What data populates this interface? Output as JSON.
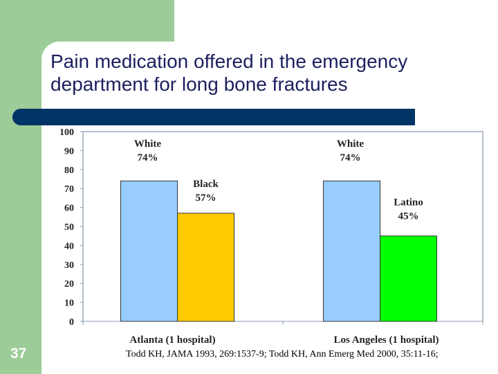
{
  "slide": {
    "title": "Pain medication offered in the emergency department for long bone fractures",
    "page_number": "37",
    "citation": "Todd KH, JAMA 1993, 269:1537-9; Todd KH, Ann Emerg Med 2000, 35:11-16;"
  },
  "chart_data": {
    "type": "bar",
    "categories": [
      "Atlanta (1 hospital)",
      "Los Angeles (1 hospital)"
    ],
    "bars": [
      {
        "category": "Atlanta (1 hospital)",
        "group": "White",
        "value": 74,
        "label": "74%",
        "color": "#99ccff"
      },
      {
        "category": "Atlanta (1 hospital)",
        "group": "Black",
        "value": 57,
        "label": "57%",
        "color": "#ffcc00"
      },
      {
        "category": "Los Angeles (1 hospital)",
        "group": "White",
        "value": 74,
        "label": "74%",
        "color": "#99ccff"
      },
      {
        "category": "Los Angeles (1 hospital)",
        "group": "Latino",
        "value": 45,
        "label": "45%",
        "color": "#00ff00"
      }
    ],
    "ylim": [
      0,
      100
    ],
    "yticks": [
      "0",
      "10",
      "20",
      "30",
      "40",
      "50",
      "60",
      "70",
      "80",
      "90",
      "100"
    ],
    "grid": false,
    "legend": "none"
  }
}
